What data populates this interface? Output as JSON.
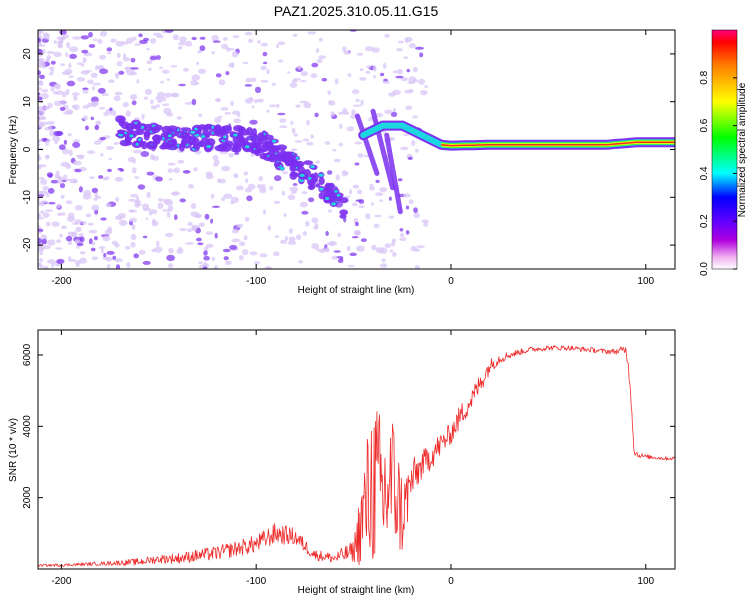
{
  "title": "PAZ1.2025.310.05.11.G15",
  "colors": {
    "snr_line": "#ee2b2b",
    "blob_light": "#d9c6f7",
    "blob_dark": "#7b2ff0",
    "ridge": "#1ad7e0",
    "core": "#f02a2a",
    "band_outer": "#33ff33"
  },
  "chart_data": [
    {
      "type": "heatmap",
      "title": "PAZ1.2025.310.05.11.G15",
      "xlabel": "Height of straight line (km)",
      "ylabel": "Frequency (Hz)",
      "xlim": [
        -212,
        115
      ],
      "ylim": [
        -25,
        25
      ],
      "xticks": [
        -200,
        -100,
        0,
        100
      ],
      "yticks": [
        -20,
        -10,
        0,
        10,
        20
      ],
      "colorbar": {
        "label": "Normalized spectral amplitude",
        "range": [
          0.0,
          1.0
        ],
        "ticks": [
          0.0,
          0.2,
          0.4,
          0.6,
          0.8
        ],
        "colormap": [
          "#ffffff",
          "#e600e6",
          "#8000ff",
          "#0000ff",
          "#00ffff",
          "#00ff00",
          "#ffff00",
          "#ff8000",
          "#ff0000"
        ]
      },
      "ridge_main": {
        "x": [
          -170,
          -150,
          -130,
          -110,
          -95,
          -85,
          -70,
          -60,
          -55
        ],
        "y": [
          4,
          3,
          2.5,
          2,
          1,
          -2,
          -6,
          -10,
          -12
        ],
        "amplitude": 0.25
      },
      "ridge_secondary": {
        "x": [
          -45,
          -35,
          -25,
          -15,
          -5,
          0,
          20,
          50,
          80,
          95,
          115
        ],
        "y": [
          3,
          5,
          5,
          3,
          1,
          0.8,
          1,
          1,
          1,
          1.5,
          1.5
        ],
        "amplitude": [
          0.2,
          0.25,
          0.3,
          0.5,
          0.7,
          0.9,
          1.0,
          1.0,
          1.0,
          0.9,
          0.9
        ]
      }
    },
    {
      "type": "line",
      "xlabel": "Height of straight line (km)",
      "ylabel": "SNR (10 * v/v)",
      "xlim": [
        -212,
        115
      ],
      "ylim": [
        0,
        6700
      ],
      "xticks": [
        -200,
        -100,
        0,
        100
      ],
      "yticks": [
        2000,
        4000,
        6000
      ],
      "series": [
        {
          "name": "SNR",
          "x": [
            -212,
            -200,
            -180,
            -160,
            -150,
            -140,
            -120,
            -100,
            -90,
            -80,
            -70,
            -60,
            -50,
            -45,
            -40,
            -35,
            -30,
            -25,
            -20,
            -15,
            -10,
            -5,
            0,
            5,
            10,
            15,
            20,
            25,
            30,
            40,
            50,
            60,
            70,
            80,
            85,
            90,
            92,
            94,
            96,
            100,
            110,
            115
          ],
          "values": [
            100,
            110,
            150,
            200,
            280,
            300,
            450,
            700,
            1000,
            900,
            400,
            300,
            500,
            1500,
            2500,
            2000,
            2500,
            1500,
            2500,
            2900,
            3200,
            3500,
            3800,
            4300,
            4700,
            5200,
            5700,
            5900,
            6000,
            6150,
            6200,
            6200,
            6150,
            6100,
            6100,
            6150,
            5200,
            3300,
            3200,
            3150,
            3100,
            3100
          ],
          "noise": [
            30,
            40,
            50,
            100,
            120,
            150,
            200,
            250,
            300,
            250,
            150,
            150,
            300,
            1500,
            2500,
            2200,
            2000,
            1200,
            600,
            400,
            400,
            350,
            300,
            350,
            300,
            300,
            200,
            150,
            100,
            80,
            70,
            70,
            70,
            70,
            80,
            150,
            200,
            100,
            80,
            60,
            50,
            50
          ]
        }
      ]
    }
  ]
}
